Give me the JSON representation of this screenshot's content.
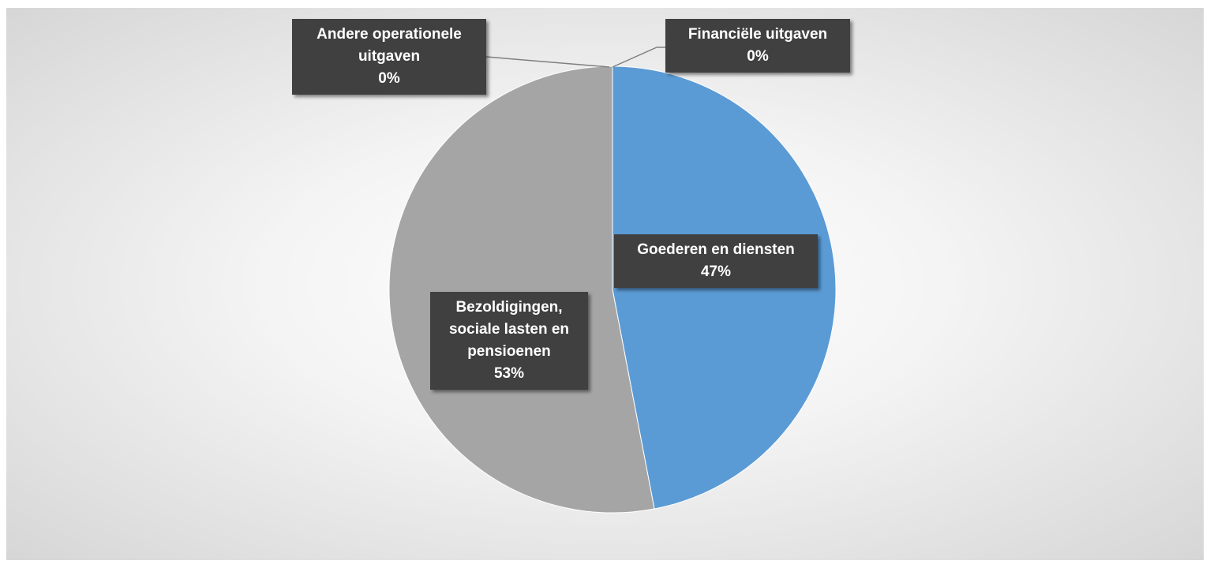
{
  "chart_data": {
    "type": "pie",
    "categories": [
      "Goederen en diensten",
      "Bezoldigingen, sociale lasten en pensioenen",
      "Andere operationele uitgaven",
      "Financiële uitgaven"
    ],
    "values": [
      47,
      53,
      0,
      0
    ],
    "value_labels": [
      "47%",
      "53%",
      "0%",
      "0%"
    ],
    "colors": [
      "#5b9bd5",
      "#a5a5a5",
      "#264478",
      "#4472c4"
    ]
  }
}
